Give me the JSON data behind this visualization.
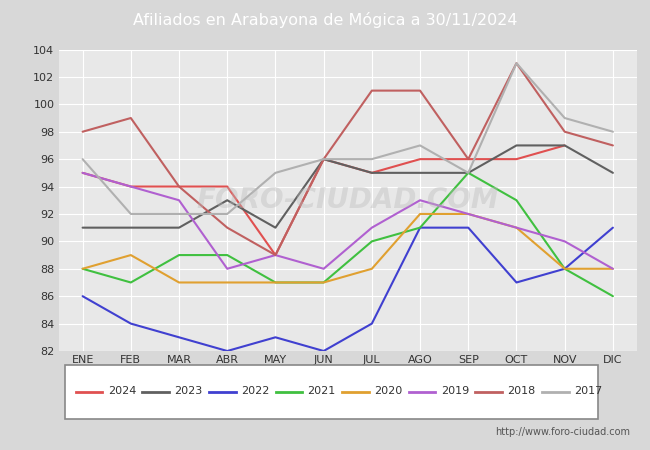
{
  "title": "Afiliados en Arabayona de Mógica a 30/11/2024",
  "header_bg": "#4a7fc1",
  "xlabel": "",
  "ylabel": "",
  "ylim": [
    82,
    104
  ],
  "yticks": [
    82,
    84,
    86,
    88,
    90,
    92,
    94,
    96,
    98,
    100,
    102,
    104
  ],
  "months": [
    "ENE",
    "FEB",
    "MAR",
    "ABR",
    "MAY",
    "JUN",
    "JUL",
    "AGO",
    "SEP",
    "OCT",
    "NOV",
    "DIC"
  ],
  "plot_bg": "#e8e8e8",
  "outer_bg": "#d8d8d8",
  "series": {
    "2024": {
      "color": "#e05050",
      "values": [
        95,
        94,
        94,
        94,
        89,
        96,
        95,
        96,
        96,
        96,
        97,
        null
      ],
      "partial": true
    },
    "2023": {
      "color": "#606060",
      "values": [
        91,
        91,
        91,
        93,
        91,
        96,
        95,
        95,
        95,
        97,
        97,
        95
      ]
    },
    "2022": {
      "color": "#4040d0",
      "values": [
        86,
        84,
        83,
        82,
        83,
        82,
        84,
        91,
        91,
        87,
        88,
        91
      ]
    },
    "2021": {
      "color": "#40c040",
      "values": [
        88,
        87,
        89,
        89,
        87,
        87,
        90,
        91,
        95,
        93,
        88,
        86
      ]
    },
    "2020": {
      "color": "#e0a030",
      "values": [
        88,
        89,
        87,
        87,
        87,
        87,
        88,
        92,
        92,
        91,
        88,
        88
      ]
    },
    "2019": {
      "color": "#b060d0",
      "values": [
        95,
        94,
        93,
        88,
        89,
        88,
        91,
        93,
        92,
        91,
        90,
        88
      ]
    },
    "2018": {
      "color": "#c06060",
      "values": [
        98,
        99,
        94,
        91,
        89,
        96,
        101,
        101,
        96,
        103,
        98,
        97
      ]
    },
    "2017": {
      "color": "#b0b0b0",
      "values": [
        96,
        92,
        92,
        92,
        95,
        96,
        96,
        97,
        95,
        103,
        99,
        98
      ]
    }
  },
  "legend_order": [
    "2024",
    "2023",
    "2022",
    "2021",
    "2020",
    "2019",
    "2018",
    "2017"
  ],
  "footer_text": "http://www.foro-ciudad.com",
  "grid_color": "#ffffff",
  "watermark": "FORO-CIUDAD.COM"
}
